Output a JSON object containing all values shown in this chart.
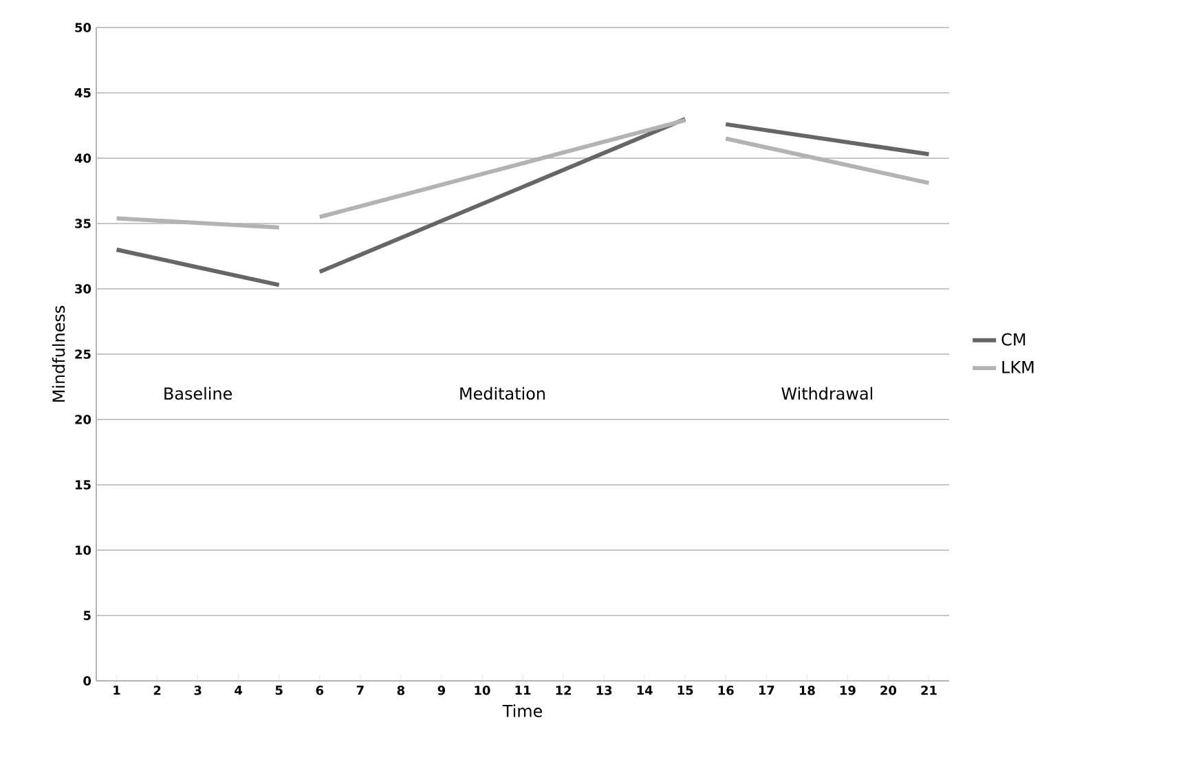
{
  "chart_data": {
    "type": "line",
    "xlabel": "Time",
    "ylabel": "Mindfulness",
    "xlim": [
      0.5,
      21.5
    ],
    "xticks": [
      1,
      2,
      3,
      4,
      5,
      6,
      7,
      8,
      9,
      10,
      11,
      12,
      13,
      14,
      15,
      16,
      17,
      18,
      19,
      20,
      21
    ],
    "ylim": [
      0,
      50
    ],
    "yticks": [
      0,
      5,
      10,
      15,
      20,
      25,
      30,
      35,
      40,
      45,
      50
    ],
    "grid": "y",
    "legend": "right",
    "marker": "none",
    "line_style": "solid",
    "series": [
      {
        "name": "CM",
        "color": "#666666",
        "x": [
          1,
          5,
          5.5,
          6,
          15,
          15.5,
          16,
          21
        ],
        "values": [
          33,
          30.3,
          null,
          31.3,
          43,
          null,
          42.6,
          40.3
        ]
      },
      {
        "name": "LKM",
        "color": "#b3b3b3",
        "x": [
          1,
          5,
          5.5,
          6,
          15,
          15.5,
          16,
          21
        ],
        "values": [
          35.4,
          34.7,
          null,
          35.5,
          42.9,
          null,
          41.5,
          38.1
        ]
      }
    ],
    "annotations": [
      "Baseline",
      "Meditation",
      "Withdrawal"
    ]
  }
}
